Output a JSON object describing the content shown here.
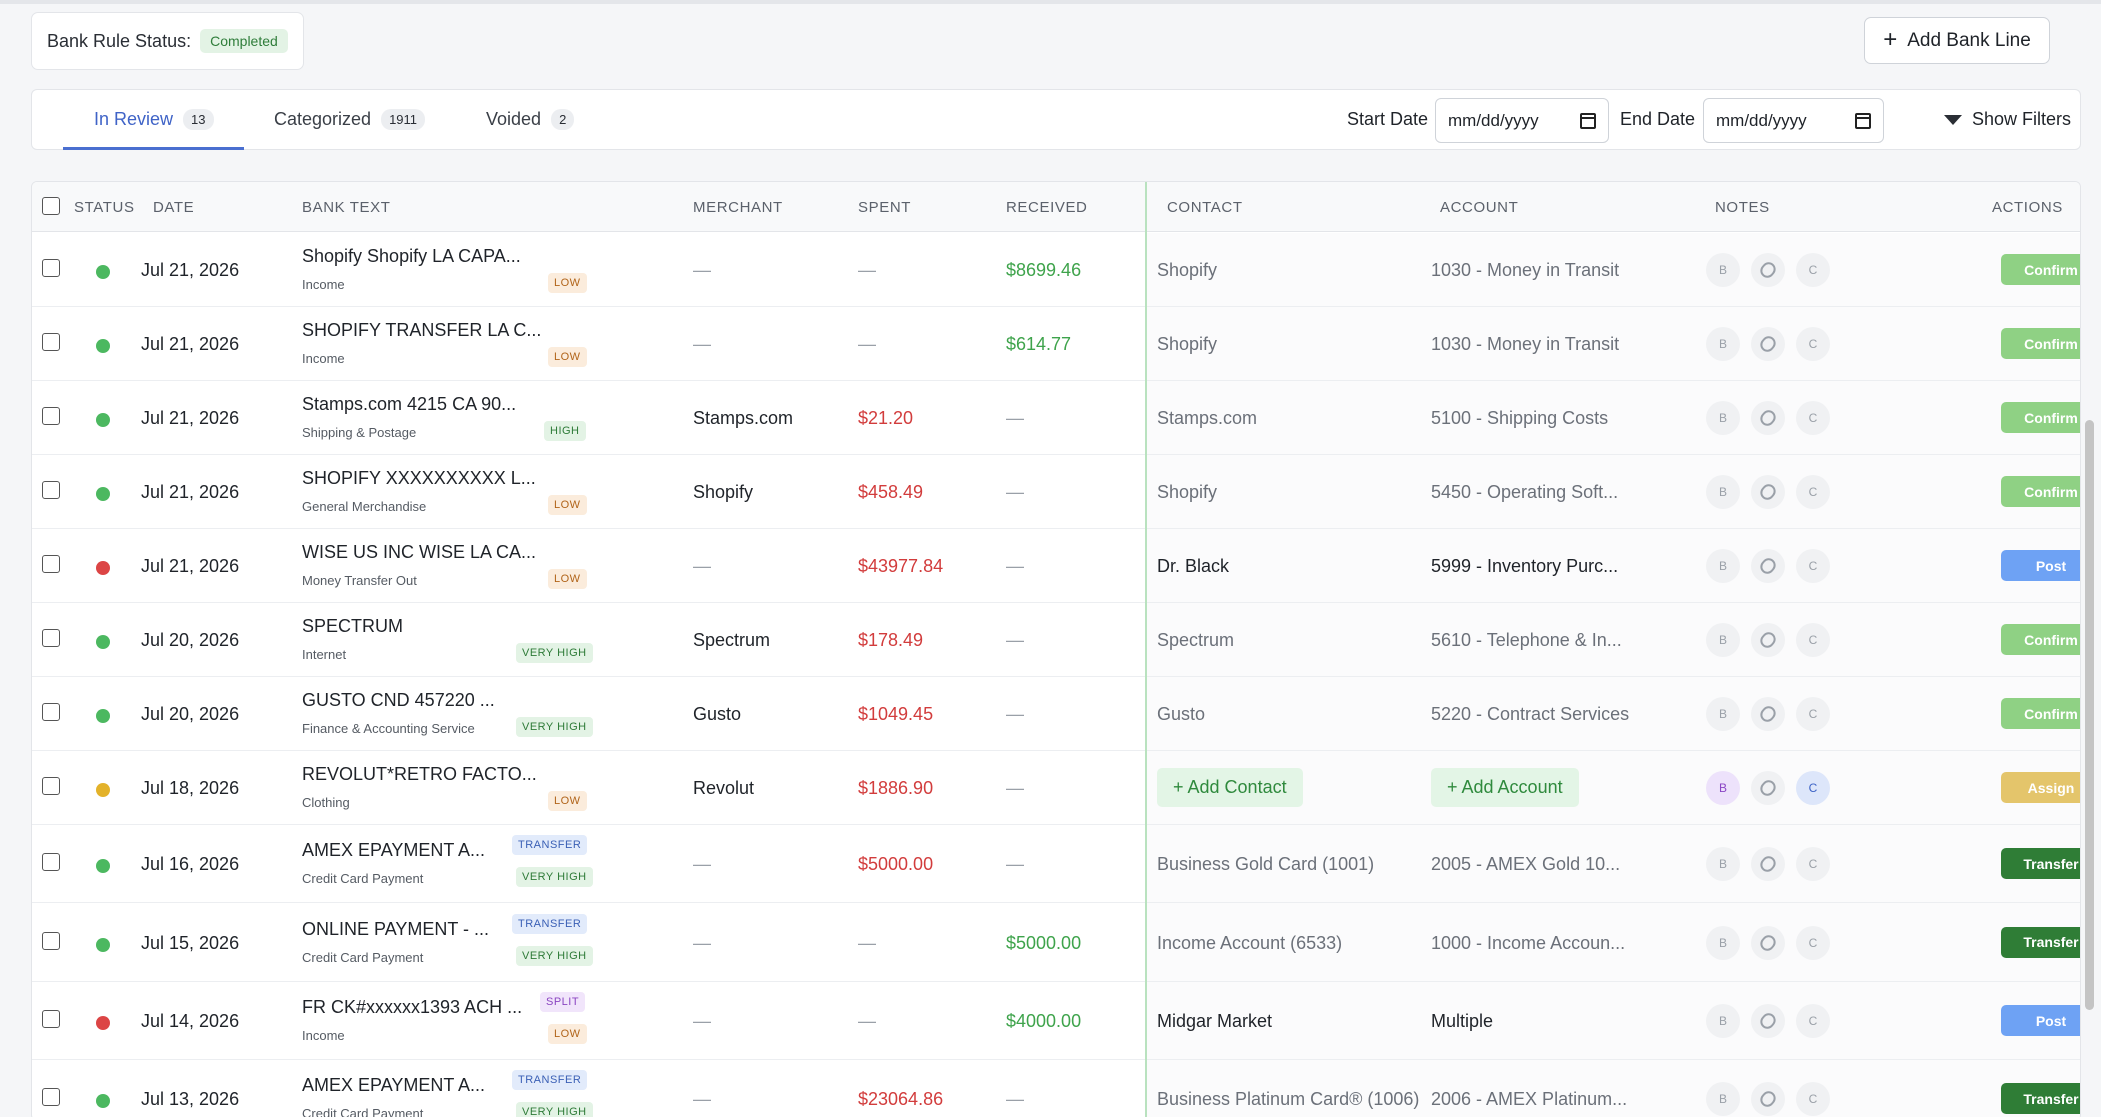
{
  "status_card": {
    "label": "Bank Rule Status:",
    "value": "Completed"
  },
  "add_bank_line": "Add Bank Line",
  "tabs": [
    {
      "label": "In Review",
      "count": "13"
    },
    {
      "label": "Categorized",
      "count": "1911"
    },
    {
      "label": "Voided",
      "count": "2"
    }
  ],
  "filters": {
    "start_label": "Start Date",
    "end_label": "End Date",
    "date_placeholder": "mm/dd/yyyy",
    "show_filters": "Show Filters"
  },
  "columns": {
    "status": "STATUS",
    "date": "DATE",
    "bank_text": "BANK TEXT",
    "merchant": "MERCHANT",
    "spent": "SPENT",
    "received": "RECEIVED",
    "contact": "CONTACT",
    "account": "ACCOUNT",
    "notes": "NOTES",
    "actions": "ACTIONS"
  },
  "note_labels": {
    "b": "B",
    "c": "C"
  },
  "rows": [
    {
      "status": "green",
      "date": "Jul 21, 2026",
      "bank_text": "Shopify Shopify LA CAPA...",
      "category": "Income",
      "tags": [
        {
          "t": "LOW",
          "k": "low"
        }
      ],
      "merchant": "—",
      "spent": "—",
      "received": "$8699.46",
      "contact": "Shopify",
      "account": "1030 - Money in Transit",
      "contact_style": "muted",
      "action": "Confirm",
      "action_style": "confirm"
    },
    {
      "status": "green",
      "date": "Jul 21, 2026",
      "bank_text": "SHOPIFY TRANSFER LA C...",
      "category": "Income",
      "tags": [
        {
          "t": "LOW",
          "k": "low"
        }
      ],
      "merchant": "—",
      "spent": "—",
      "received": "$614.77",
      "contact": "Shopify",
      "account": "1030 - Money in Transit",
      "contact_style": "muted",
      "action": "Confirm",
      "action_style": "confirm"
    },
    {
      "status": "green",
      "date": "Jul 21, 2026",
      "bank_text": "Stamps.com 4215 CA 90...",
      "category": "Shipping & Postage",
      "tags": [
        {
          "t": "HIGH",
          "k": "high"
        }
      ],
      "merchant": "Stamps.com",
      "spent": "$21.20",
      "received": "—",
      "contact": "Stamps.com",
      "account": "5100 - Shipping Costs",
      "contact_style": "muted",
      "action": "Confirm",
      "action_style": "confirm"
    },
    {
      "status": "green",
      "date": "Jul 21, 2026",
      "bank_text": "SHOPIFY XXXXXXXXXX L...",
      "category": "General Merchandise",
      "tags": [
        {
          "t": "LOW",
          "k": "low"
        }
      ],
      "merchant": "Shopify",
      "spent": "$458.49",
      "received": "—",
      "contact": "Shopify",
      "account": "5450 - Operating Soft...",
      "contact_style": "muted",
      "action": "Confirm",
      "action_style": "confirm"
    },
    {
      "status": "red",
      "date": "Jul 21, 2026",
      "bank_text": "WISE US INC WISE LA CA...",
      "category": "Money Transfer Out",
      "tags": [
        {
          "t": "LOW",
          "k": "low"
        }
      ],
      "merchant": "—",
      "spent": "$43977.84",
      "received": "—",
      "contact": "Dr. Black",
      "account": "5999 - Inventory Purc...",
      "contact_style": "dark",
      "action": "Post",
      "action_style": "post"
    },
    {
      "status": "green",
      "date": "Jul 20, 2026",
      "bank_text": "SPECTRUM",
      "category": "Internet",
      "tags": [
        {
          "t": "VERY HIGH",
          "k": "high"
        }
      ],
      "merchant": "Spectrum",
      "spent": "$178.49",
      "received": "—",
      "contact": "Spectrum",
      "account": "5610 - Telephone & In...",
      "contact_style": "muted",
      "action": "Confirm",
      "action_style": "confirm"
    },
    {
      "status": "green",
      "date": "Jul 20, 2026",
      "bank_text": "GUSTO CND 457220 ...",
      "category": "Finance & Accounting Service",
      "tags": [
        {
          "t": "VERY HIGH",
          "k": "high"
        }
      ],
      "merchant": "Gusto",
      "spent": "$1049.45",
      "received": "—",
      "contact": "Gusto",
      "account": "5220 - Contract Services",
      "contact_style": "muted",
      "action": "Confirm",
      "action_style": "confirm"
    },
    {
      "status": "yellow",
      "date": "Jul 18, 2026",
      "bank_text": "REVOLUT*RETRO FACTO...",
      "category": "Clothing",
      "tags": [
        {
          "t": "LOW",
          "k": "low"
        }
      ],
      "merchant": "Revolut",
      "spent": "$1886.90",
      "received": "—",
      "contact": "+ Add Contact",
      "account": "+ Add Account",
      "contact_style": "chip",
      "action": "Assign",
      "action_style": "assign",
      "notes_on": true
    },
    {
      "status": "green",
      "date": "Jul 16, 2026",
      "bank_text": "AMEX EPAYMENT A...",
      "category": "Credit Card Payment",
      "tags": [
        {
          "t": "TRANSFER",
          "k": "transfer"
        },
        {
          "t": "VERY HIGH",
          "k": "high"
        }
      ],
      "merchant": "—",
      "spent": "$5000.00",
      "received": "—",
      "contact": "Business Gold Card (1001)",
      "account": "2005 - AMEX Gold 10...",
      "contact_style": "muted",
      "action": "Transfer",
      "action_style": "transfer"
    },
    {
      "status": "green",
      "date": "Jul 15, 2026",
      "bank_text": "ONLINE PAYMENT - ...",
      "category": "Credit Card Payment",
      "tags": [
        {
          "t": "TRANSFER",
          "k": "transfer"
        },
        {
          "t": "VERY HIGH",
          "k": "high"
        }
      ],
      "merchant": "—",
      "spent": "—",
      "received": "$5000.00",
      "contact": "Income Account (6533)",
      "account": "1000 - Income Accoun...",
      "contact_style": "muted",
      "action": "Transfer",
      "action_style": "transfer"
    },
    {
      "status": "red",
      "date": "Jul 14, 2026",
      "bank_text": "FR CK#xxxxxx1393 ACH ...",
      "category": "Income",
      "tags": [
        {
          "t": "SPLIT",
          "k": "split"
        },
        {
          "t": "LOW",
          "k": "low"
        }
      ],
      "merchant": "—",
      "spent": "—",
      "received": "$4000.00",
      "contact": "Midgar Market",
      "account": "Multiple",
      "contact_style": "dark",
      "action": "Post",
      "action_style": "post"
    },
    {
      "status": "green",
      "date": "Jul 13, 2026",
      "bank_text": "AMEX EPAYMENT A...",
      "category": "Credit Card Payment",
      "tags": [
        {
          "t": "TRANSFER",
          "k": "transfer"
        },
        {
          "t": "VERY HIGH",
          "k": "high"
        }
      ],
      "merchant": "—",
      "spent": "$23064.86",
      "received": "—",
      "contact": "Business Platinum Card® (1006)",
      "account": "2006 - AMEX Platinum...",
      "contact_style": "muted",
      "action": "Transfer",
      "action_style": "transfer"
    }
  ],
  "colors": {
    "green": "#4cb860",
    "red": "#dc4545",
    "yellow": "#e3b22a"
  }
}
